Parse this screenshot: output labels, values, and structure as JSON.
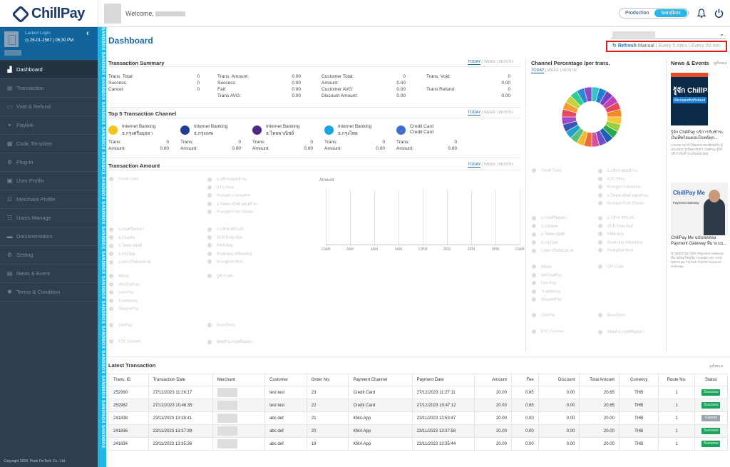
{
  "brand": {
    "name": "ChillPay"
  },
  "header": {
    "welcome": "Welcome,",
    "env_production": "Production",
    "env_sandbox": "Sandbox"
  },
  "sidebar": {
    "last_login_label": "Lastest Login",
    "last_login_value": "26-01-2567  |  06:30 PM",
    "items": [
      {
        "label": "Dashboard",
        "icon": "chart-icon"
      },
      {
        "label": "Transaction",
        "icon": "document-icon"
      },
      {
        "label": "Void & Refund",
        "icon": "card-icon"
      },
      {
        "label": "Paylink",
        "icon": "link-icon"
      },
      {
        "label": "Code Template",
        "icon": "code-icon"
      },
      {
        "label": "Plug-in",
        "icon": "gear-icon"
      },
      {
        "label": "User Profile",
        "icon": "user-icon"
      },
      {
        "label": "Merchant Profile",
        "icon": "users-icon"
      },
      {
        "label": "Users Manage",
        "icon": "users-icon"
      },
      {
        "label": "Documentation",
        "icon": "folder-icon"
      },
      {
        "label": "Setting",
        "icon": "gears-icon"
      },
      {
        "label": "News & Event",
        "icon": "news-icon"
      },
      {
        "label": "Terms & Condition",
        "icon": "asterisk-icon"
      }
    ],
    "copyright": "Copyright 2024, Prain FinTech Co., Ltd.",
    "sandbox_text": "SANDBOX SANDBOX SANDBOX SANDBOX SANDBOX SANDBOX SANDBOX SANDBOX SANDBOX SANDBOX SANDBOX SANDBOX SANDBOX SANDBOX SANDBOX SANDBOX SANDBOX SANDBOX SANDBOX SANDBOX SANDBOX SANDBOX SANDBOX SANDBOX SANDBOX"
  },
  "dashboard": {
    "title": "Dashboard",
    "refresh": {
      "label": "Refresh",
      "manual": "Manual",
      "sep": "|",
      "every5": "Every 5 mins",
      "every20": "Every 20 min"
    },
    "tabs": {
      "today": "TODAY",
      "week": "WEEK",
      "month": "MONTH",
      "sep": "|"
    },
    "summary": {
      "title": "Transaction Summary",
      "col1": [
        {
          "label": "Trans. Total:",
          "value": "0"
        },
        {
          "label": "Success:",
          "value": "0"
        },
        {
          "label": "Cancel:",
          "value": "0"
        }
      ],
      "col2": [
        {
          "label": "Trans. Amount:",
          "value": "0.00"
        },
        {
          "label": "Success:",
          "value": "0.00"
        },
        {
          "label": "Fail:",
          "value": "0.00"
        },
        {
          "label": "Trans AVG:",
          "value": "0.00"
        }
      ],
      "col3": [
        {
          "label": "Customer Total:",
          "value": "0"
        },
        {
          "label": "Amount:",
          "value": "0.00"
        },
        {
          "label": "Customer AVG:",
          "value": "0.00"
        },
        {
          "label": "Discount Amount:",
          "value": "0.00"
        }
      ],
      "col4": [
        {
          "label": "Trans. Void:",
          "value": "0"
        },
        {
          "label": "",
          "value": "0.00"
        },
        {
          "label": "Trans Refund:",
          "value": "0"
        },
        {
          "label": "",
          "value": "0.00"
        }
      ]
    },
    "top5": {
      "title": "Top 5 Transaction Channel",
      "trans_label": "Trans:",
      "amount_label": "Amount:",
      "channels": [
        {
          "name": "Internet Banking",
          "sub": "ธ.กรุงศรีอยุธยา",
          "trans": "0",
          "amount": "0.00",
          "color": "#f3c21b",
          "icon": "krungsri-icon"
        },
        {
          "name": "Internet Banking",
          "sub": "ธ.กรุงเทพ",
          "trans": "0",
          "amount": "0.00",
          "color": "#1f3f93",
          "icon": "bangkok-bank-icon"
        },
        {
          "name": "Internet Banking",
          "sub": "ธ.ไทยพาณิชย์",
          "trans": "0",
          "amount": "0.00",
          "color": "#4e2a84",
          "icon": "scb-icon"
        },
        {
          "name": "Internet Banking",
          "sub": "ธ.กรุงไทย",
          "trans": "0",
          "amount": "0.00",
          "color": "#1ba5e2",
          "icon": "ktb-icon"
        },
        {
          "name": "Credit Card",
          "sub": "Credit Card",
          "trans": "0",
          "amount": "0.00",
          "color": "#3f6fd0",
          "icon": "credit-card-icon"
        }
      ]
    },
    "amount": {
      "title": "Transaction Amount",
      "legend_groups": [
        [
          "Credit Card"
        ],
        [
          "ธ.กสิกร ผ่อนชำระ",
          "KTC Flexi",
          "Krungsri Consumer",
          "ธ.ไทยพาณิชย์ ผ่อนชำระ",
          "Krungsri First Choice"
        ],
        [
          "ธ.กรุงศรีอยุธยา",
          "ธ.กรุงเทพ",
          "ธ.ไทยพาณิชย์",
          "ธ.กรุงไทย",
          "ธ.ทหารไทยธนชาต"
        ],
        [
          "ธ.กสิกร KPLUS",
          "SCB Easy App",
          "KMA App",
          "Bualuang mBanking",
          "Krungthai Next"
        ],
        [
          "Alipay",
          "WeChatPay",
          "Line Pay",
          "TrueMoney",
          "ShopeePay"
        ],
        [
          "QR Code"
        ],
        [
          "CenPay"
        ],
        [
          "BoonTerm"
        ],
        [
          "KTC Forever"
        ],
        [
          "พ้อยท์ ธ.กรุงศรีอยุธยา"
        ]
      ],
      "chart_label": "Amount"
    },
    "chart_data": {
      "type": "line",
      "title": "",
      "ylabel": "Amount",
      "xlabel": "",
      "categories": [
        "12AM",
        "3AM",
        "6AM",
        "9AM",
        "12PM",
        "3PM",
        "6PM",
        "9PM",
        "12AM"
      ],
      "series": []
    },
    "channel_pct": {
      "title": "Channel Percentage /per trans.",
      "colors": [
        "#34c3c8",
        "#1e7fd0",
        "#7a3fc4",
        "#c43fb6",
        "#e8495a",
        "#f28a2a",
        "#f7c63b",
        "#9bcf3a",
        "#2aa84f",
        "#1a5fb4",
        "#6f4ec7",
        "#d94f9a",
        "#ee6b3b",
        "#f5b82e",
        "#58c07a",
        "#1fa3c9",
        "#3c54b8",
        "#a34bc7",
        "#e6495e",
        "#f49b34",
        "#c9d13a",
        "#2ecc8f",
        "#2d88d8",
        "#8a48c6"
      ],
      "legend_groups": [
        [
          "Credit Card"
        ],
        [
          "ธ.กสิกร ผ่อนชำระ",
          "KTC Flexi",
          "Krungsri Consumer",
          "ธ.ไทยพาณิชย์ ผ่อนชำระ",
          "Krungsri First Choice"
        ],
        [
          "ธ.กรุงศรีอยุธยา",
          "ธ.กรุงเทพ",
          "ธ.ไทยพาณิชย์",
          "ธ.กรุงไทย",
          "ธ.ทหารไทยธนชาต"
        ],
        [
          "ธ.กสิกร KPLUS",
          "SCB Easy App",
          "KMA App",
          "Bualuang mBanking",
          "Krungthai Next"
        ],
        [
          "Alipay",
          "WeChatPay",
          "Line Pay",
          "TrueMoney",
          "ShopeePay"
        ],
        [
          "QR Code"
        ],
        [
          "CenPay"
        ],
        [
          "BoonTerm"
        ],
        [
          "KTC Forever"
        ],
        [
          "พ้อยท์ ธ.กรุงศรีอยุธยา"
        ]
      ]
    },
    "news": {
      "title": "News & Events",
      "more": "ดูทั้งหมด",
      "items": [
        {
          "img_text": "รู้จัก ChillPay",
          "img_sub": "เปิดเหตุผลที่ธุรกิจต้องมี",
          "headline": "รู้จัก ChillPay บริการรับชำระเงินที่พร้อมตอบโจทย์ทุก...",
          "snippet": "COVID-19 ทำให้ผลกระทบเชิงธุรกิจ ผู้ประกอบการต้องปรับตัว ChillPay ผู้ให้บริการรับชำระเงินออนไลน์"
        },
        {
          "img_text": "ChillPay Me",
          "img_sub": "Payment Gateway",
          "headline": "ChillPay Me ฉบับทดลอง Payment Gateway ที่มาแบบ...",
          "snippet": "ชวนทุกท่านมารู้จัก Payment Gateway ที่มาพร้อมโซลูชัน Founder และ CEO ของ Prain FinTech ร่วมกับ Payment Gateway"
        }
      ]
    },
    "latest": {
      "title": "Latest Transaction",
      "more": "ดูทั้งหมด",
      "columns": [
        "Trans. ID",
        "Transaction Date",
        "Merchant",
        "Customer",
        "Order No.",
        "Payment Channel",
        "Payment Date",
        "Amount",
        "Fee",
        "Discount",
        "Total Amount",
        "Currency",
        "Route No.",
        "Status"
      ],
      "rows": [
        {
          "id": "252990",
          "date": "27/12/2023 11:26:17",
          "customer": "test test",
          "order": "23",
          "channel": "Credit Card",
          "pay_date": "27/12/2023 11:27:11",
          "amount": "20.00",
          "fee": "0.65",
          "discount": "0.00",
          "total": "20.65",
          "currency": "THB",
          "route": "1",
          "status": "Success",
          "status_color": "#1aa35a"
        },
        {
          "id": "252982",
          "date": "27/12/2023 10:46:35",
          "customer": "test test",
          "order": "22",
          "channel": "Credit Card",
          "pay_date": "27/12/2023 10:47:12",
          "amount": "20.00",
          "fee": "0.65",
          "discount": "0.00",
          "total": "20.65",
          "currency": "THB",
          "route": "1",
          "status": "Success",
          "status_color": "#1aa35a"
        },
        {
          "id": "241838",
          "date": "23/11/2023 13:38:41",
          "customer": "abc def",
          "order": "21",
          "channel": "KMA App",
          "pay_date": "23/11/2023 13:53:47",
          "amount": "20.00",
          "fee": "0.00",
          "discount": "0.00",
          "total": "20.00",
          "currency": "THB",
          "route": "1",
          "status": "Cancel",
          "status_color": "#9aa2aa"
        },
        {
          "id": "241836",
          "date": "23/11/2023 13:37:39",
          "customer": "abc def",
          "order": "20",
          "channel": "KMA App",
          "pay_date": "23/11/2023 13:37:58",
          "amount": "20.00",
          "fee": "0.00",
          "discount": "0.00",
          "total": "20.00",
          "currency": "THB",
          "route": "1",
          "status": "Success",
          "status_color": "#1aa35a"
        },
        {
          "id": "241834",
          "date": "23/11/2023 13:35:36",
          "customer": "abc def",
          "order": "19",
          "channel": "KMA App",
          "pay_date": "23/11/2023 13:35:44",
          "amount": "20.00",
          "fee": "0.00",
          "discount": "0.00",
          "total": "20.00",
          "currency": "THB",
          "route": "1",
          "status": "Success",
          "status_color": "#1aa35a"
        }
      ]
    }
  }
}
